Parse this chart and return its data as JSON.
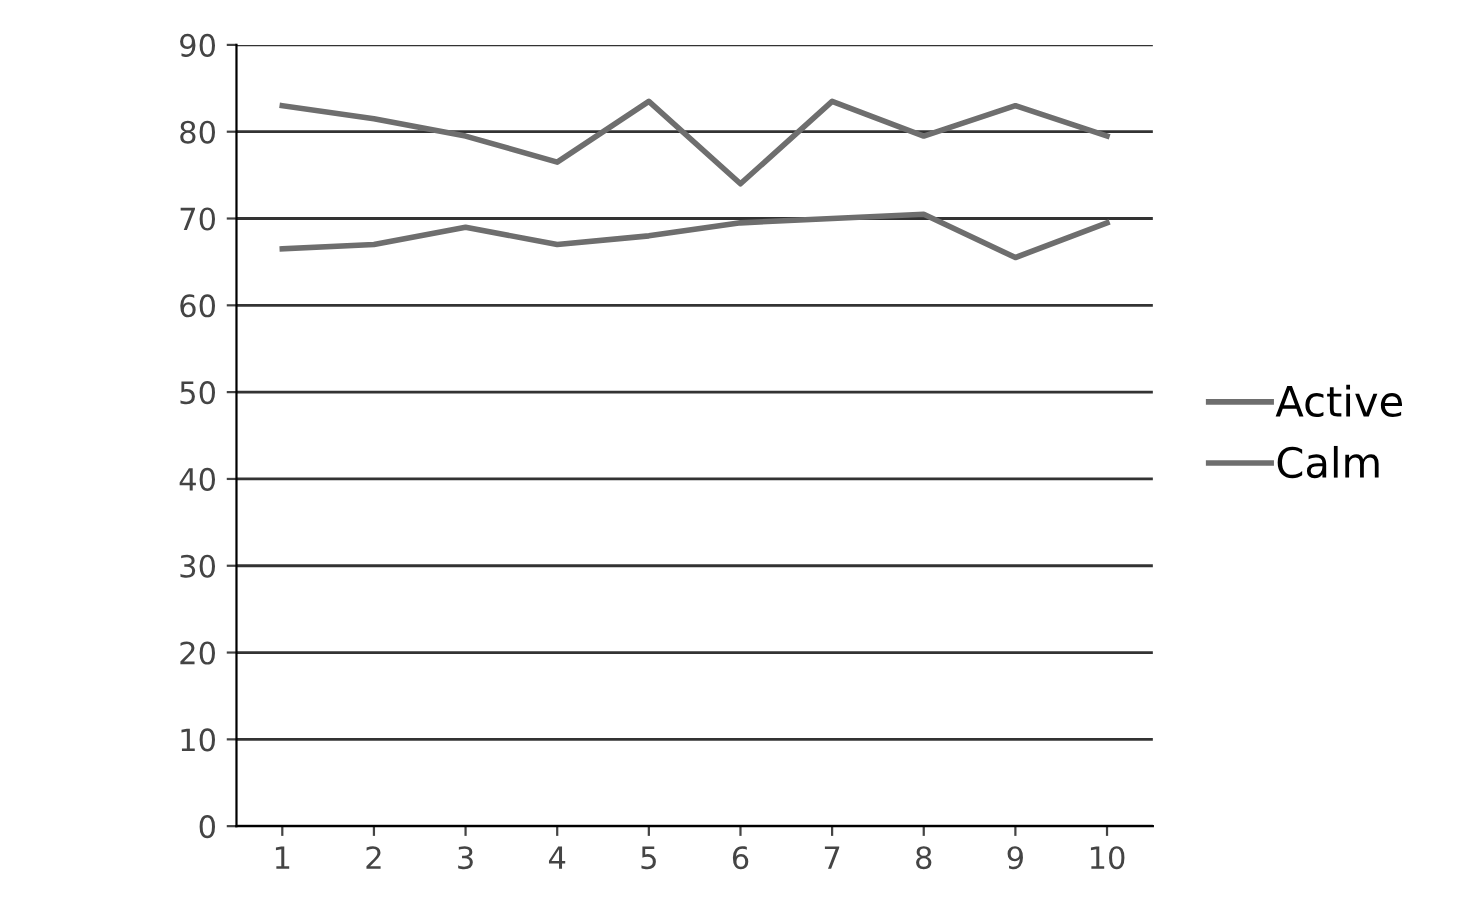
{
  "chart_data": {
    "type": "line",
    "categories": [
      "1",
      "2",
      "3",
      "4",
      "5",
      "6",
      "7",
      "8",
      "9",
      "10"
    ],
    "series": [
      {
        "name": "Active",
        "color": "#6e6e6e",
        "values": [
          83,
          81.5,
          79.5,
          76.5,
          83.5,
          74,
          83.5,
          79.5,
          83,
          79.5
        ]
      },
      {
        "name": "Calm",
        "color": "#6e6e6e",
        "values": [
          66.5,
          67,
          69,
          67,
          68,
          69.5,
          70,
          70.5,
          65.5,
          69.5
        ]
      }
    ],
    "ylim": [
      0,
      90
    ],
    "yticks": [
      0,
      10,
      20,
      30,
      40,
      50,
      60,
      70,
      80,
      90
    ],
    "grid": "y",
    "legend": "right",
    "marker": "none",
    "line_style": "solid"
  }
}
